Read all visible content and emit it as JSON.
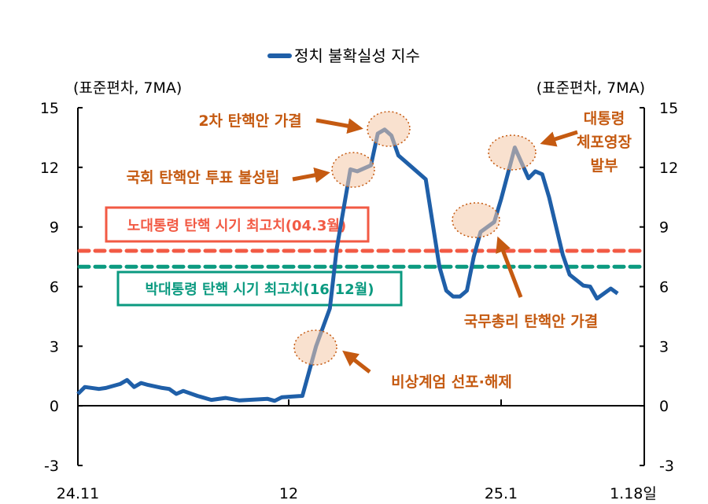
{
  "chart_data": {
    "type": "line",
    "title": "",
    "legend": {
      "position": "top-center",
      "entries": [
        "정치 불확실성 지수"
      ]
    },
    "y_unit_left": "(표준편차, 7MA)",
    "y_unit_right": "(표준편차, 7MA)",
    "ylim": [
      -3,
      15
    ],
    "yticks": [
      "15",
      "12",
      "9",
      "6",
      "3",
      "0",
      "-3"
    ],
    "xticks": [
      {
        "label": "24.11",
        "date": "2024-11-01"
      },
      {
        "label": "12",
        "date": "2024-12-01"
      },
      {
        "label": "25.1",
        "date": "2025-01-01"
      },
      {
        "label": "1.18일",
        "date": "2025-01-18"
      }
    ],
    "grid": false,
    "series": [
      {
        "name": "정치 불확실성 지수",
        "color": "#1f5fa8",
        "x": [
          "2024-11-01",
          "2024-11-02",
          "2024-11-04",
          "2024-11-05",
          "2024-11-07",
          "2024-11-08",
          "2024-11-09",
          "2024-11-10",
          "2024-11-11",
          "2024-11-13",
          "2024-11-14",
          "2024-11-15",
          "2024-11-16",
          "2024-11-18",
          "2024-11-20",
          "2024-11-22",
          "2024-11-24",
          "2024-11-27",
          "2024-11-28",
          "2024-11-29",
          "2024-11-30",
          "2024-12-03",
          "2024-12-05",
          "2024-12-07",
          "2024-12-08",
          "2024-12-10",
          "2024-12-11",
          "2024-12-13",
          "2024-12-14",
          "2024-12-15",
          "2024-12-16",
          "2024-12-17",
          "2024-12-19",
          "2024-12-21",
          "2024-12-23",
          "2024-12-24",
          "2024-12-25",
          "2024-12-26",
          "2024-12-27",
          "2024-12-28",
          "2024-12-29",
          "2024-12-31",
          "2025-01-01",
          "2025-01-03",
          "2025-01-05",
          "2025-01-06",
          "2025-01-07",
          "2025-01-08",
          "2025-01-10",
          "2025-01-11",
          "2025-01-13",
          "2025-01-14",
          "2025-01-15",
          "2025-01-17",
          "2025-01-18"
        ],
        "values": [
          0.6,
          0.95,
          0.85,
          0.9,
          1.1,
          1.3,
          0.95,
          1.15,
          1.05,
          0.9,
          0.85,
          0.6,
          0.75,
          0.5,
          0.3,
          0.4,
          0.27,
          0.33,
          0.35,
          0.25,
          0.43,
          0.5,
          3.0,
          4.9,
          7.9,
          11.9,
          11.8,
          12.1,
          13.7,
          13.9,
          13.6,
          12.6,
          12.0,
          11.4,
          7.0,
          5.8,
          5.5,
          5.5,
          5.8,
          7.5,
          8.75,
          9.25,
          10.4,
          13.0,
          11.45,
          11.8,
          11.65,
          10.5,
          7.6,
          6.6,
          6.05,
          6.0,
          5.4,
          5.9,
          5.65
        ]
      }
    ],
    "reference_lines": [
      {
        "label": "노대통령 탄핵 시기 최고치(04.3월)",
        "value": 7.8,
        "color": "#f25a44"
      },
      {
        "label": "박대통령 탄핵 시기 최고치(16.12월)",
        "value": 7.0,
        "color": "#0b9a80"
      }
    ],
    "annotations": [
      {
        "text": "비상계엄 선포·해제",
        "date": "2024-12-04"
      },
      {
        "text": "국회 탄핵안 투표 불성립",
        "date": "2024-12-10"
      },
      {
        "text": "2차 탄핵안 가결",
        "date": "2024-12-14"
      },
      {
        "text": "국무총리 탄핵안 가결",
        "date": "2024-12-27"
      },
      {
        "text": "대통령 체포영장 발부",
        "lines": [
          "대통령",
          "체포영장",
          "발부"
        ],
        "date": "2024-12-31"
      }
    ],
    "annotation_color": "#c55a11"
  }
}
